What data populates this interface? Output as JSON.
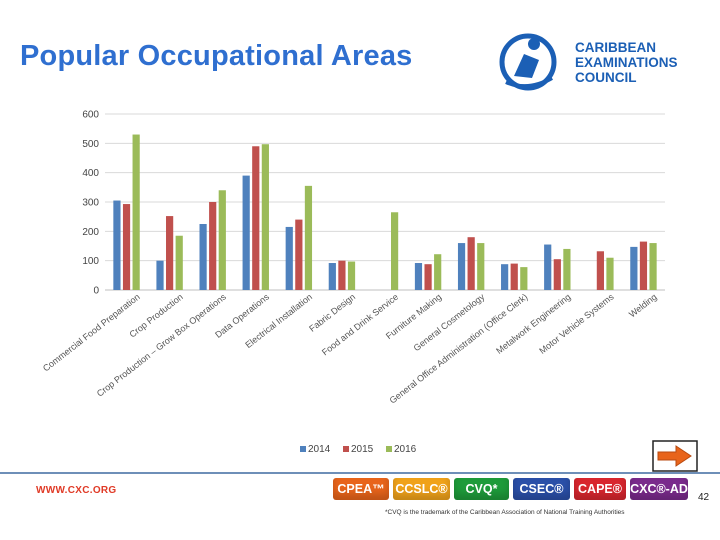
{
  "slide": {
    "title": "Popular Occupational Areas",
    "page_number": "42",
    "footer_url": "WWW.CXC.ORG",
    "trademark_note": "*CVQ is the trademark of the Caribbean Association of National Training Authorities"
  },
  "logo": {
    "mark": "CXC",
    "lines": [
      "CARIBBEAN",
      "EXAMINATIONS",
      "COUNCIL"
    ]
  },
  "programmes": [
    {
      "label": "CPEA™",
      "color": "#e8641b"
    },
    {
      "label": "CCSLC®",
      "color": "#f0a21a"
    },
    {
      "label": "CVQ*",
      "color": "#1e9b3a"
    },
    {
      "label": "CSEC®",
      "color": "#2a4fa8"
    },
    {
      "label": "CAPE®",
      "color": "#d8262e"
    },
    {
      "label": "CXC®-AD",
      "color": "#7a2a8c"
    }
  ],
  "colors": {
    "accent": "#2f6fd0",
    "series_2014": "#4f81bd",
    "series_2015": "#c0504d",
    "series_2016": "#9bbb59"
  },
  "chart_data": {
    "type": "bar",
    "title": "",
    "xlabel": "",
    "ylabel": "",
    "ylim": [
      0,
      600
    ],
    "yticks": [
      0,
      100,
      200,
      300,
      400,
      500,
      600
    ],
    "grid": true,
    "legend": "bottom",
    "categories": [
      "Commercial Food Preparation",
      "Crop Production",
      "Crop Production – Grow Box Operations",
      "Data Operations",
      "Electrical Installation",
      "Fabric Design",
      "Food and Drink Service",
      "Furniture Making",
      "General Cosmetology",
      "General Office Administration (Office Clerk)",
      "Metalwork Engineering",
      "Motor Vehicle Systems",
      "Welding"
    ],
    "series": [
      {
        "name": "2014",
        "values": [
          305,
          100,
          225,
          390,
          215,
          92,
          0,
          92,
          160,
          88,
          155,
          0,
          147
        ]
      },
      {
        "name": "2015",
        "values": [
          293,
          252,
          300,
          490,
          240,
          100,
          0,
          88,
          180,
          90,
          105,
          132,
          165
        ]
      },
      {
        "name": "2016",
        "values": [
          530,
          185,
          340,
          497,
          355,
          97,
          265,
          122,
          160,
          78,
          140,
          110,
          160
        ]
      }
    ]
  }
}
